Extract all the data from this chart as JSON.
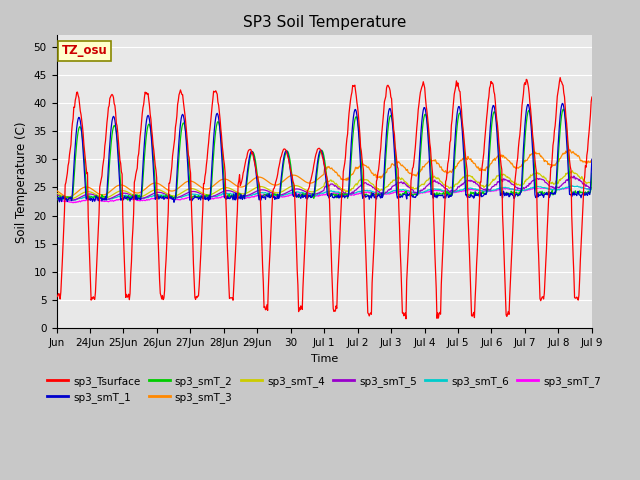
{
  "title": "SP3 Soil Temperature",
  "ylabel": "Soil Temperature (C)",
  "xlabel": "Time",
  "ylim": [
    0,
    52
  ],
  "yticks": [
    0,
    5,
    10,
    15,
    20,
    25,
    30,
    35,
    40,
    45,
    50
  ],
  "fig_bg": "#c8c8c8",
  "ax_bg": "#e8e8e8",
  "tz_label": "TZ_osu",
  "series_colors": {
    "sp3_Tsurface": "#ff0000",
    "sp3_smT_1": "#0000cc",
    "sp3_smT_2": "#00cc00",
    "sp3_smT_3": "#ff8800",
    "sp3_smT_4": "#cccc00",
    "sp3_smT_5": "#9900cc",
    "sp3_smT_6": "#00cccc",
    "sp3_smT_7": "#ff00ff"
  },
  "n_days": 15.5,
  "pts_per_day": 48
}
